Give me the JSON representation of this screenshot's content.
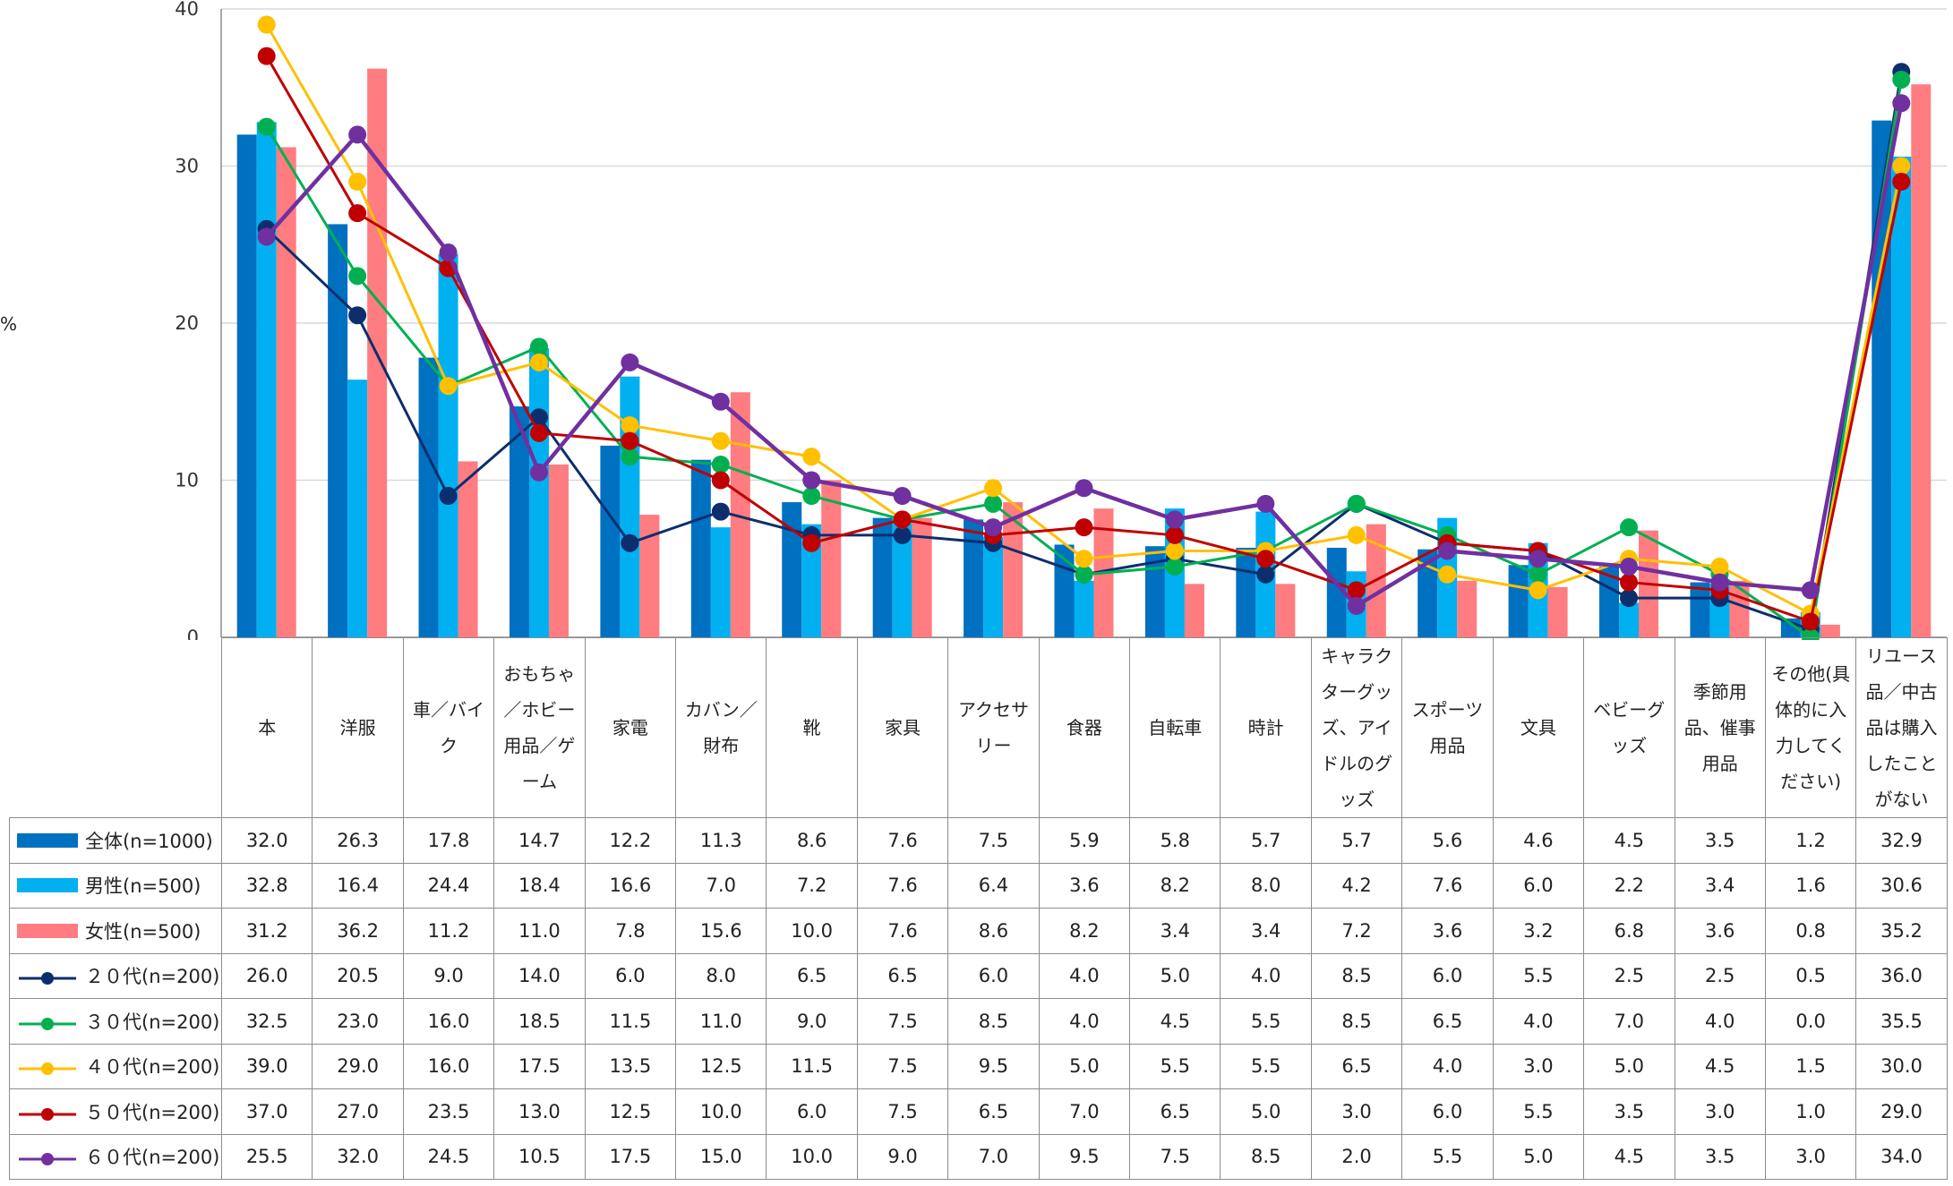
{
  "unit_label": "%",
  "chart_data": {
    "type": "bar",
    "ylim": [
      0,
      40
    ],
    "yticks": [
      0,
      10,
      20,
      30,
      40
    ],
    "grid": true,
    "categories": [
      "本",
      "洋服",
      "車／バイク",
      "おもちゃ／ホビー用品／ゲーム",
      "家電",
      "カバン／財布",
      "靴",
      "家具",
      "アクセサリー",
      "食器",
      "自転車",
      "時計",
      "キャラクターグッズ、アイドルのグッズ",
      "スポーツ用品",
      "文具",
      "ベビーグッズ",
      "季節用品、催事用品",
      "その他(具体的に入力してください)",
      "リユース品／中古品は購入したことがない"
    ],
    "series": [
      {
        "name": "全体(n=1000)",
        "kind": "bar",
        "color": "#0070C0",
        "values": [
          32.0,
          26.3,
          17.8,
          14.7,
          12.2,
          11.3,
          8.6,
          7.6,
          7.5,
          5.9,
          5.8,
          5.7,
          5.7,
          5.6,
          4.6,
          4.5,
          3.5,
          1.2,
          32.9
        ]
      },
      {
        "name": "男性(n=500)",
        "kind": "bar",
        "color": "#00B0F0",
        "values": [
          32.8,
          16.4,
          24.4,
          18.4,
          16.6,
          7.0,
          7.2,
          7.6,
          6.4,
          3.6,
          8.2,
          8.0,
          4.2,
          7.6,
          6.0,
          2.2,
          3.4,
          1.6,
          30.6
        ]
      },
      {
        "name": "女性(n=500)",
        "kind": "bar",
        "color": "#FF7C80",
        "values": [
          31.2,
          36.2,
          11.2,
          11.0,
          7.8,
          15.6,
          10.0,
          7.6,
          8.6,
          8.2,
          3.4,
          3.4,
          7.2,
          3.6,
          3.2,
          6.8,
          3.6,
          0.8,
          35.2
        ]
      },
      {
        "name": "２０代(n=200)",
        "kind": "line",
        "color": "#0D2E6E",
        "values": [
          26.0,
          20.5,
          9.0,
          14.0,
          6.0,
          8.0,
          6.5,
          6.5,
          6.0,
          4.0,
          5.0,
          4.0,
          8.5,
          6.0,
          5.5,
          2.5,
          2.5,
          0.5,
          36.0
        ]
      },
      {
        "name": "３０代(n=200)",
        "kind": "line",
        "color": "#00B050",
        "values": [
          32.5,
          23.0,
          16.0,
          18.5,
          11.5,
          11.0,
          9.0,
          7.5,
          8.5,
          4.0,
          4.5,
          5.5,
          8.5,
          6.5,
          4.0,
          7.0,
          4.0,
          0.0,
          35.5
        ]
      },
      {
        "name": "４０代(n=200)",
        "kind": "line",
        "color": "#FFC000",
        "values": [
          39.0,
          29.0,
          16.0,
          17.5,
          13.5,
          12.5,
          11.5,
          7.5,
          9.5,
          5.0,
          5.5,
          5.5,
          6.5,
          4.0,
          3.0,
          5.0,
          4.5,
          1.5,
          30.0
        ]
      },
      {
        "name": "５０代(n=200)",
        "kind": "line",
        "color": "#C00000",
        "values": [
          37.0,
          27.0,
          23.5,
          13.0,
          12.5,
          10.0,
          6.0,
          7.5,
          6.5,
          7.0,
          6.5,
          5.0,
          3.0,
          6.0,
          5.5,
          3.5,
          3.0,
          1.0,
          29.0
        ]
      },
      {
        "name": "６０代(n=200)",
        "kind": "line",
        "color": "#7030A0",
        "values": [
          25.5,
          32.0,
          24.5,
          10.5,
          17.5,
          15.0,
          10.0,
          9.0,
          7.0,
          9.5,
          7.5,
          8.5,
          2.0,
          5.5,
          5.0,
          4.5,
          3.5,
          3.0,
          34.0
        ]
      }
    ]
  }
}
